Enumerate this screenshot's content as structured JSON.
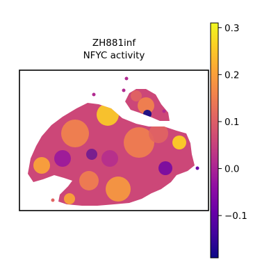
{
  "chart_data": {
    "type": "heatmap",
    "title": "ZH881inf",
    "subtitle": "NFYC activity",
    "colormap": "plasma",
    "colorbar": {
      "vmin": -0.19,
      "vmax": 0.31,
      "ticks": [
        -0.1,
        0.0,
        0.1,
        0.2,
        0.3
      ],
      "tick_labels": [
        "−0.1",
        "0.0",
        "0.1",
        "0.2",
        "0.3"
      ]
    },
    "axes_visible": false,
    "grid": false
  }
}
